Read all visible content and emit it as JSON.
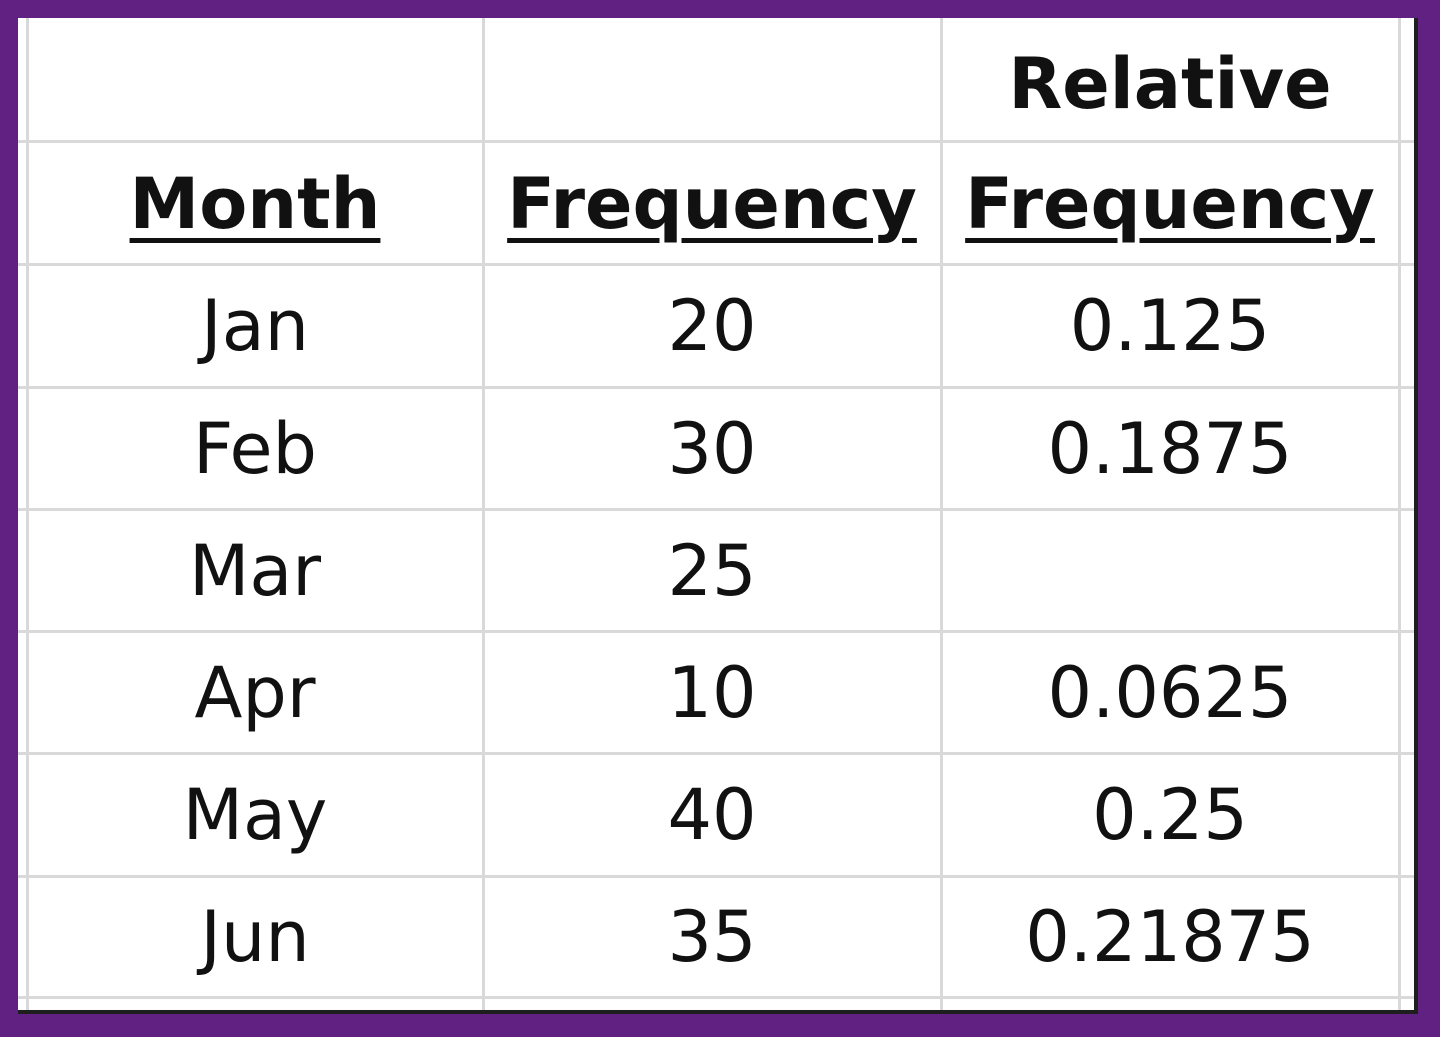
{
  "table": {
    "header_top": {
      "relative": "Relative"
    },
    "headers": [
      "Month",
      "Frequency",
      "Frequency"
    ],
    "rows": [
      {
        "month": "Jan",
        "frequency": "20",
        "relative_frequency": "0.125"
      },
      {
        "month": "Feb",
        "frequency": "30",
        "relative_frequency": "0.1875"
      },
      {
        "month": "Mar",
        "frequency": "25",
        "relative_frequency": ""
      },
      {
        "month": "Apr",
        "frequency": "10",
        "relative_frequency": "0.0625"
      },
      {
        "month": "May",
        "frequency": "40",
        "relative_frequency": "0.25"
      },
      {
        "month": "Jun",
        "frequency": "35",
        "relative_frequency": "0.21875"
      }
    ]
  },
  "colors": {
    "frame": "#612182",
    "gridline": "#d9d9d9",
    "text": "#111111"
  }
}
